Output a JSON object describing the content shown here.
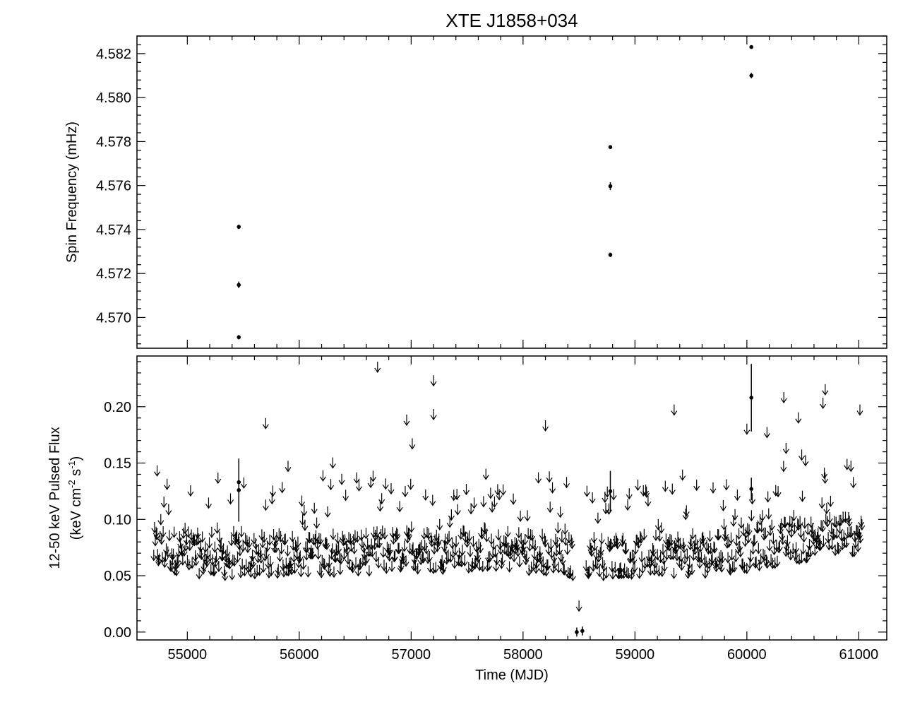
{
  "chart_data": [
    {
      "type": "scatter",
      "title": "XTE J1858+034",
      "ylabel": "Spin Frequency (mHz)",
      "xlabel": "",
      "xlim": [
        54550,
        61250
      ],
      "ylim": [
        4.5686,
        4.5828
      ],
      "grid": false,
      "y_ticks": [
        "4.570",
        "4.572",
        "4.574",
        "4.576",
        "4.578",
        "4.580",
        "4.582"
      ],
      "series": [
        {
          "marker": "dot-with-errorbar",
          "points": [
            {
              "x": 55460,
              "y": 4.57412,
              "err": 0.0001
            },
            {
              "x": 55460,
              "y": 4.57148,
              "err": 0.00015
            },
            {
              "x": 55460,
              "y": 4.5691,
              "err": 0.0001
            },
            {
              "x": 58780,
              "y": 4.57775,
              "err": 8e-05
            },
            {
              "x": 58780,
              "y": 4.57597,
              "err": 0.00018
            },
            {
              "x": 58780,
              "y": 4.57285,
              "err": 0.0001
            },
            {
              "x": 60040,
              "y": 4.5823,
              "err": 8e-05
            },
            {
              "x": 60040,
              "y": 4.581,
              "err": 0.00012
            }
          ]
        }
      ]
    },
    {
      "type": "scatter",
      "title": "",
      "ylabel": "12-50 keV Pulsed Flux",
      "ylabel_line2_parts": [
        "(keV cm",
        "-2",
        " s",
        "-1",
        ")"
      ],
      "xlabel": "Time (MJD)",
      "xlim": [
        54550,
        61250
      ],
      "ylim": [
        -0.007,
        0.245
      ],
      "grid": false,
      "x_ticks": [
        "55000",
        "56000",
        "57000",
        "58000",
        "59000",
        "60000",
        "61000"
      ],
      "y_ticks": [
        "0.00",
        "0.05",
        "0.10",
        "0.15",
        "0.20"
      ],
      "upper_limits_description": "Dense upper limits (downward arrows) between MJD ~54700 and ~61030, mostly 0.05-0.12",
      "upper_limit_band": {
        "x_start": 54700,
        "x_end": 61030,
        "baseline": [
          [
            54700,
            0.08
          ],
          [
            55300,
            0.072
          ],
          [
            56000,
            0.075
          ],
          [
            57000,
            0.078
          ],
          [
            57800,
            0.08
          ],
          [
            58400,
            0.072
          ],
          [
            59000,
            0.074
          ],
          [
            59800,
            0.075
          ],
          [
            60300,
            0.085
          ],
          [
            60700,
            0.09
          ],
          [
            61030,
            0.095
          ]
        ]
      },
      "upper_limits_notable": [
        {
          "x": 54730,
          "y": 0.148
        },
        {
          "x": 55700,
          "y": 0.19
        },
        {
          "x": 56700,
          "y": 0.24
        },
        {
          "x": 56960,
          "y": 0.193
        },
        {
          "x": 57010,
          "y": 0.172
        },
        {
          "x": 57200,
          "y": 0.228
        },
        {
          "x": 57200,
          "y": 0.198
        },
        {
          "x": 58200,
          "y": 0.188
        },
        {
          "x": 59350,
          "y": 0.202
        },
        {
          "x": 60330,
          "y": 0.213
        },
        {
          "x": 60460,
          "y": 0.195
        },
        {
          "x": 60700,
          "y": 0.22
        },
        {
          "x": 60680,
          "y": 0.208
        },
        {
          "x": 61010,
          "y": 0.202
        },
        {
          "x": 60180,
          "y": 0.182
        },
        {
          "x": 60000,
          "y": 0.185
        },
        {
          "x": 60350,
          "y": 0.168
        },
        {
          "x": 60490,
          "y": 0.162
        },
        {
          "x": 58500,
          "y": 0.028
        },
        {
          "x": 56300,
          "y": 0.155
        },
        {
          "x": 55900,
          "y": 0.152
        }
      ],
      "detections": [
        {
          "x": 55460,
          "y": 0.126,
          "err": 0.028
        },
        {
          "x": 55460,
          "y": 0.133,
          "err": 0.015
        },
        {
          "x": 58780,
          "y": 0.125,
          "err": 0.018
        },
        {
          "x": 60040,
          "y": 0.208,
          "err": 0.03
        },
        {
          "x": 60040,
          "y": 0.127,
          "err": 0.01
        },
        {
          "x": 58480,
          "y": 0.0,
          "err": 0.004
        },
        {
          "x": 58530,
          "y": 0.001,
          "err": 0.004
        }
      ]
    }
  ]
}
